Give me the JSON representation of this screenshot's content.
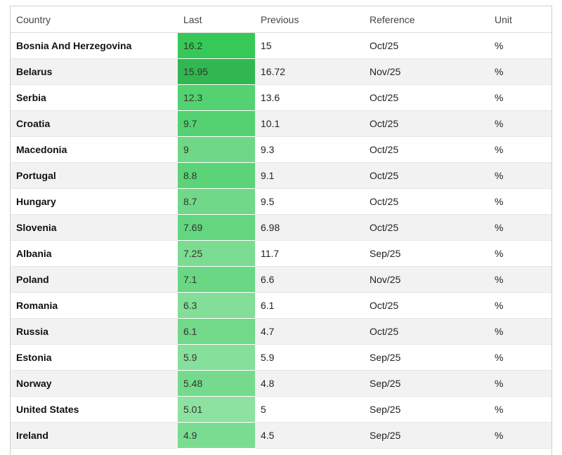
{
  "table": {
    "header": [
      "Country",
      "Last",
      "Previous",
      "Reference",
      "Unit"
    ],
    "rows": [
      [
        "Bosnia And Herzegovina",
        16.2,
        15,
        "Oct/25",
        "%"
      ],
      [
        "Belarus",
        15.95,
        16.72,
        "Nov/25",
        "%"
      ],
      [
        "Serbia",
        12.3,
        13.6,
        "Oct/25",
        "%"
      ],
      [
        "Croatia",
        9.7,
        10.1,
        "Oct/25",
        "%"
      ],
      [
        "Macedonia",
        9,
        9.3,
        "Oct/25",
        "%"
      ],
      [
        "Portugal",
        8.8,
        9.1,
        "Oct/25",
        "%"
      ],
      [
        "Hungary",
        8.7,
        9.5,
        "Oct/25",
        "%"
      ],
      [
        "Slovenia",
        7.69,
        6.98,
        "Oct/25",
        "%"
      ],
      [
        "Albania",
        7.25,
        11.7,
        "Sep/25",
        "%"
      ],
      [
        "Poland",
        7.1,
        6.6,
        "Nov/25",
        "%"
      ],
      [
        "Romania",
        6.3,
        6.1,
        "Oct/25",
        "%"
      ],
      [
        "Russia",
        6.1,
        4.7,
        "Oct/25",
        "%"
      ],
      [
        "Estonia",
        5.9,
        5.9,
        "Sep/25",
        "%"
      ],
      [
        "Norway",
        5.48,
        4.8,
        "Sep/25",
        "%"
      ],
      [
        "United States",
        5.01,
        5,
        "Sep/25",
        "%"
      ],
      [
        "Ireland",
        4.9,
        4.5,
        "Sep/25",
        "%"
      ]
    ]
  }
}
